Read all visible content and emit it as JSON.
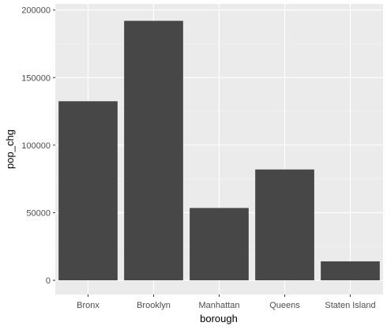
{
  "chart_data": {
    "type": "bar",
    "categories": [
      "Bronx",
      "Brooklyn",
      "Manhattan",
      "Queens",
      "Staten Island"
    ],
    "values": [
      132500,
      192000,
      53500,
      82000,
      14000
    ],
    "title": "",
    "xlabel": "borough",
    "ylabel": "pop_chg",
    "ylim": [
      -10500,
      204500
    ],
    "yticks": [
      0,
      50000,
      100000,
      150000,
      200000
    ],
    "ytick_labels": [
      "0",
      "50000",
      "100000",
      "150000",
      "200000"
    ],
    "grid": true,
    "legend": "none",
    "colors": {
      "bar": "#474747",
      "panel": "#ebebeb",
      "grid_major": "#ffffff",
      "grid_minor": "#f5f5f5",
      "tick": "#333333"
    }
  }
}
